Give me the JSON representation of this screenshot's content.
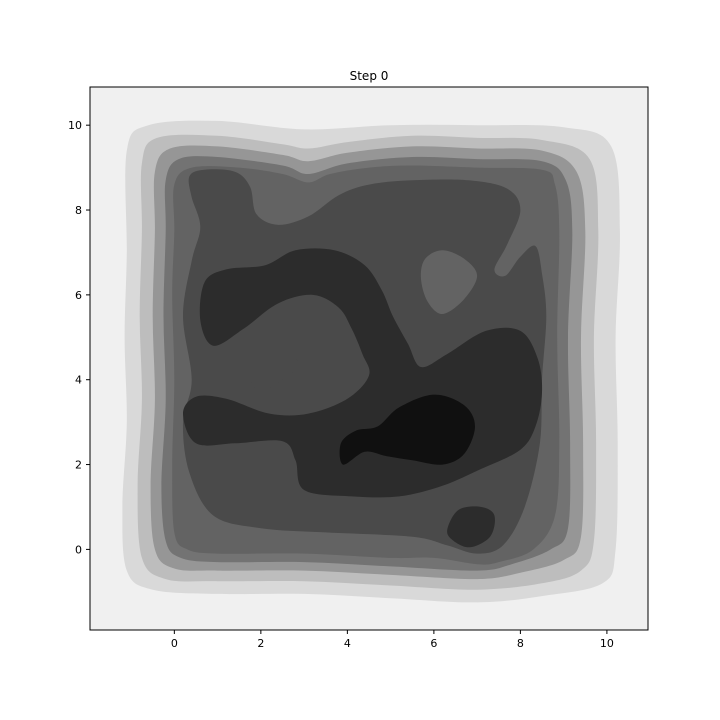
{
  "chart_data": {
    "type": "heatmap",
    "subtype": "filled-contour",
    "title": "Step 0",
    "xlabel": "",
    "ylabel": "",
    "xlim": [
      -1.95,
      10.95
    ],
    "ylim": [
      -1.9,
      10.9
    ],
    "xticks": [
      0,
      2,
      4,
      6,
      8,
      10
    ],
    "yticks": [
      0,
      2,
      4,
      6,
      8,
      10
    ],
    "grid": false,
    "colormap": "greys",
    "contour_levels": [
      {
        "level": 0,
        "color": "#f0f0f0"
      },
      {
        "level": 1,
        "color": "#d9d9d9"
      },
      {
        "level": 2,
        "color": "#bdbdbd"
      },
      {
        "level": 3,
        "color": "#969696"
      },
      {
        "level": 4,
        "color": "#737373"
      },
      {
        "level": 5,
        "color": "#636363"
      },
      {
        "level": 6,
        "color": "#4a4a4a"
      },
      {
        "level": 7,
        "color": "#2c2c2c"
      },
      {
        "level": 8,
        "color": "#101010"
      }
    ],
    "regions": [
      {
        "level": 1,
        "points": [
          [
            -1.1,
            9.4
          ],
          [
            -0.6,
            10.0
          ],
          [
            1.0,
            10.1
          ],
          [
            3.0,
            9.9
          ],
          [
            5.0,
            10.0
          ],
          [
            7.0,
            10.0
          ],
          [
            9.0,
            9.95
          ],
          [
            10.1,
            9.5
          ],
          [
            10.3,
            7.5
          ],
          [
            10.2,
            5.0
          ],
          [
            10.25,
            2.5
          ],
          [
            10.2,
            0.0
          ],
          [
            9.9,
            -0.8
          ],
          [
            8.5,
            -1.1
          ],
          [
            7.0,
            -1.25
          ],
          [
            5.0,
            -1.15
          ],
          [
            3.0,
            -1.05
          ],
          [
            1.0,
            -1.05
          ],
          [
            -0.5,
            -0.95
          ],
          [
            -1.1,
            -0.5
          ],
          [
            -1.2,
            1.0
          ],
          [
            -1.1,
            3.0
          ],
          [
            -1.15,
            5.0
          ],
          [
            -1.1,
            7.0
          ]
        ]
      },
      {
        "level": 2,
        "points": [
          [
            -0.75,
            9.1
          ],
          [
            -0.4,
            9.7
          ],
          [
            1.0,
            9.75
          ],
          [
            2.5,
            9.55
          ],
          [
            3.1,
            9.45
          ],
          [
            4.0,
            9.6
          ],
          [
            5.5,
            9.75
          ],
          [
            7.0,
            9.7
          ],
          [
            8.5,
            9.65
          ],
          [
            9.6,
            9.2
          ],
          [
            9.8,
            7.5
          ],
          [
            9.7,
            5.0
          ],
          [
            9.75,
            2.5
          ],
          [
            9.7,
            0.2
          ],
          [
            9.4,
            -0.5
          ],
          [
            8.5,
            -0.8
          ],
          [
            7.0,
            -0.95
          ],
          [
            5.0,
            -0.85
          ],
          [
            3.0,
            -0.75
          ],
          [
            1.0,
            -0.75
          ],
          [
            -0.2,
            -0.7
          ],
          [
            -0.75,
            -0.2
          ],
          [
            -0.85,
            1.5
          ],
          [
            -0.75,
            3.5
          ],
          [
            -0.8,
            5.5
          ],
          [
            -0.75,
            7.5
          ]
        ]
      },
      {
        "level": 3,
        "points": [
          [
            -0.45,
            8.9
          ],
          [
            -0.1,
            9.45
          ],
          [
            1.0,
            9.5
          ],
          [
            2.5,
            9.3
          ],
          [
            3.1,
            9.15
          ],
          [
            4.0,
            9.35
          ],
          [
            5.5,
            9.5
          ],
          [
            7.0,
            9.45
          ],
          [
            8.5,
            9.4
          ],
          [
            9.3,
            8.9
          ],
          [
            9.5,
            7.5
          ],
          [
            9.4,
            5.0
          ],
          [
            9.45,
            2.5
          ],
          [
            9.4,
            0.3
          ],
          [
            9.0,
            -0.25
          ],
          [
            8.0,
            -0.55
          ],
          [
            7.0,
            -0.7
          ],
          [
            5.0,
            -0.6
          ],
          [
            3.0,
            -0.5
          ],
          [
            1.0,
            -0.5
          ],
          [
            0.0,
            -0.45
          ],
          [
            -0.45,
            0.0
          ],
          [
            -0.55,
            1.5
          ],
          [
            -0.45,
            3.5
          ],
          [
            -0.5,
            5.5
          ],
          [
            -0.45,
            7.5
          ]
        ]
      },
      {
        "level": 4,
        "points": [
          [
            -0.2,
            8.7
          ],
          [
            0.1,
            9.2
          ],
          [
            1.0,
            9.25
          ],
          [
            2.5,
            9.05
          ],
          [
            3.1,
            8.85
          ],
          [
            4.0,
            9.1
          ],
          [
            5.5,
            9.25
          ],
          [
            7.0,
            9.2
          ],
          [
            8.5,
            9.15
          ],
          [
            9.05,
            8.7
          ],
          [
            9.2,
            7.5
          ],
          [
            9.1,
            5.0
          ],
          [
            9.15,
            2.5
          ],
          [
            9.1,
            0.5
          ],
          [
            8.7,
            0.0
          ],
          [
            7.8,
            -0.35
          ],
          [
            7.0,
            -0.5
          ],
          [
            5.0,
            -0.4
          ],
          [
            3.0,
            -0.3
          ],
          [
            1.0,
            -0.3
          ],
          [
            0.15,
            -0.2
          ],
          [
            -0.2,
            0.2
          ],
          [
            -0.3,
            1.5
          ],
          [
            -0.2,
            3.5
          ],
          [
            -0.25,
            5.5
          ],
          [
            -0.2,
            7.5
          ]
        ]
      },
      {
        "level": 5,
        "points": [
          [
            0.0,
            8.6
          ],
          [
            0.4,
            9.0
          ],
          [
            1.5,
            9.0
          ],
          [
            2.5,
            8.85
          ],
          [
            3.1,
            8.65
          ],
          [
            3.6,
            8.85
          ],
          [
            4.5,
            9.0
          ],
          [
            5.5,
            9.05
          ],
          [
            7.0,
            9.0
          ],
          [
            8.5,
            8.95
          ],
          [
            8.8,
            8.6
          ],
          [
            8.9,
            7.5
          ],
          [
            8.85,
            5.0
          ],
          [
            8.9,
            2.5
          ],
          [
            8.8,
            0.8
          ],
          [
            8.3,
            0.0
          ],
          [
            7.5,
            -0.3
          ],
          [
            7.0,
            -0.35
          ],
          [
            6.0,
            -0.2
          ],
          [
            5.0,
            -0.2
          ],
          [
            3.0,
            -0.1
          ],
          [
            1.0,
            -0.1
          ],
          [
            0.3,
            0.0
          ],
          [
            0.0,
            0.4
          ],
          [
            -0.05,
            2.0
          ],
          [
            0.0,
            4.0
          ],
          [
            -0.05,
            6.0
          ],
          [
            0.0,
            7.5
          ]
        ]
      },
      {
        "level": 6,
        "points": [
          [
            0.35,
            8.8
          ],
          [
            0.7,
            8.95
          ],
          [
            1.4,
            8.9
          ],
          [
            1.75,
            8.55
          ],
          [
            1.9,
            7.9
          ],
          [
            2.4,
            7.65
          ],
          [
            3.1,
            7.85
          ],
          [
            3.8,
            8.35
          ],
          [
            4.5,
            8.6
          ],
          [
            5.5,
            8.7
          ],
          [
            6.8,
            8.7
          ],
          [
            7.7,
            8.5
          ],
          [
            8.0,
            8.0
          ],
          [
            7.7,
            7.2
          ],
          [
            7.4,
            6.6
          ],
          [
            7.65,
            6.45
          ],
          [
            8.0,
            6.9
          ],
          [
            8.35,
            7.15
          ],
          [
            8.5,
            6.5
          ],
          [
            8.6,
            5.5
          ],
          [
            8.5,
            4.0
          ],
          [
            8.45,
            2.5
          ],
          [
            8.1,
            1.0
          ],
          [
            7.6,
            0.1
          ],
          [
            7.0,
            -0.1
          ],
          [
            6.3,
            0.1
          ],
          [
            5.5,
            0.3
          ],
          [
            3.5,
            0.4
          ],
          [
            2.0,
            0.5
          ],
          [
            0.9,
            0.8
          ],
          [
            0.35,
            1.8
          ],
          [
            0.2,
            3.0
          ],
          [
            0.4,
            4.0
          ],
          [
            0.2,
            5.5
          ],
          [
            0.4,
            6.8
          ],
          [
            0.6,
            7.6
          ],
          [
            0.4,
            8.3
          ]
        ]
      },
      {
        "level": 5,
        "points": [
          [
            5.8,
            6.85
          ],
          [
            6.2,
            7.05
          ],
          [
            6.7,
            6.85
          ],
          [
            7.0,
            6.45
          ],
          [
            6.7,
            5.9
          ],
          [
            6.2,
            5.55
          ],
          [
            5.85,
            5.85
          ],
          [
            5.7,
            6.4
          ]
        ]
      },
      {
        "level": 7,
        "points": [
          [
            0.7,
            6.3
          ],
          [
            1.2,
            6.6
          ],
          [
            2.1,
            6.7
          ],
          [
            2.8,
            7.05
          ],
          [
            3.7,
            7.05
          ],
          [
            4.4,
            6.7
          ],
          [
            4.8,
            6.1
          ],
          [
            5.05,
            5.5
          ],
          [
            5.4,
            4.85
          ],
          [
            5.7,
            4.3
          ],
          [
            6.3,
            4.6
          ],
          [
            7.2,
            5.15
          ],
          [
            8.0,
            5.15
          ],
          [
            8.4,
            4.5
          ],
          [
            8.5,
            3.7
          ],
          [
            8.35,
            2.9
          ],
          [
            8.0,
            2.35
          ],
          [
            7.1,
            1.9
          ],
          [
            6.2,
            1.5
          ],
          [
            5.2,
            1.25
          ],
          [
            4.1,
            1.25
          ],
          [
            3.0,
            1.4
          ],
          [
            2.8,
            2.1
          ],
          [
            2.5,
            2.55
          ],
          [
            1.4,
            2.5
          ],
          [
            0.5,
            2.5
          ],
          [
            0.2,
            3.2
          ],
          [
            0.5,
            3.6
          ],
          [
            1.2,
            3.55
          ],
          [
            2.2,
            3.2
          ],
          [
            3.1,
            3.2
          ],
          [
            4.0,
            3.55
          ],
          [
            4.5,
            4.1
          ],
          [
            4.35,
            4.6
          ],
          [
            4.1,
            5.2
          ],
          [
            3.8,
            5.7
          ],
          [
            3.2,
            6.0
          ],
          [
            2.4,
            5.8
          ],
          [
            1.6,
            5.2
          ],
          [
            0.9,
            4.8
          ],
          [
            0.6,
            5.4
          ]
        ]
      },
      {
        "level": 6,
        "points": [
          [
            1.8,
            4.3
          ],
          [
            2.2,
            4.6
          ],
          [
            2.6,
            4.6
          ],
          [
            2.9,
            4.35
          ],
          [
            2.5,
            4.0
          ],
          [
            2.05,
            3.75
          ],
          [
            1.8,
            3.9
          ]
        ]
      },
      {
        "level": 8,
        "points": [
          [
            3.9,
            2.0
          ],
          [
            4.4,
            2.3
          ],
          [
            4.9,
            2.2
          ],
          [
            5.5,
            2.1
          ],
          [
            6.2,
            2.0
          ],
          [
            6.7,
            2.25
          ],
          [
            6.95,
            2.9
          ],
          [
            6.7,
            3.4
          ],
          [
            6.0,
            3.65
          ],
          [
            5.2,
            3.35
          ],
          [
            4.7,
            2.9
          ],
          [
            4.2,
            2.8
          ],
          [
            3.85,
            2.5
          ]
        ]
      },
      {
        "level": 7,
        "points": [
          [
            6.35,
            0.3
          ],
          [
            6.8,
            0.05
          ],
          [
            7.3,
            0.3
          ],
          [
            7.4,
            0.8
          ],
          [
            7.1,
            1.0
          ],
          [
            6.6,
            0.95
          ],
          [
            6.35,
            0.6
          ]
        ]
      }
    ]
  }
}
